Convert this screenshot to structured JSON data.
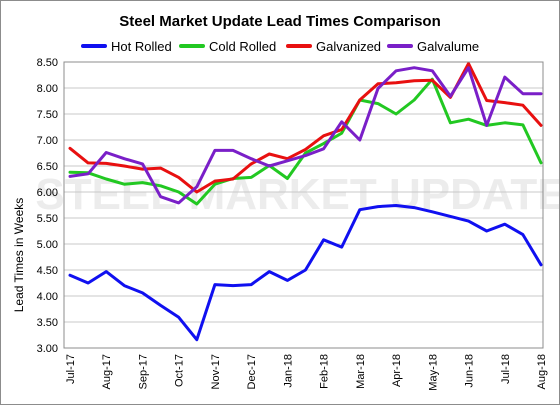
{
  "chart_data": {
    "type": "line",
    "title": "Steel Market Update Lead Times Comparison",
    "ylabel": "Lead Times in Weeks",
    "xlabel": "",
    "ylim": [
      3.0,
      8.5
    ],
    "yticks": [
      "3.00",
      "3.50",
      "4.00",
      "4.50",
      "5.00",
      "5.50",
      "6.00",
      "6.50",
      "7.00",
      "7.50",
      "8.00",
      "8.50"
    ],
    "tick_labels": [
      "Jul-17",
      "Aug-17",
      "Sep-17",
      "Oct-17",
      "Nov-17",
      "Dec-17",
      "Jan-18",
      "Feb-18",
      "Mar-18",
      "Apr-18",
      "May-18",
      "Jun-18",
      "Jul-18",
      "Aug-18"
    ],
    "grid": true,
    "legend": "top",
    "watermark": "STEEL MARKET UPDATE",
    "series": [
      {
        "name": "Hot Rolled",
        "color": "#1010f0",
        "values": [
          4.4,
          4.25,
          4.47,
          4.2,
          4.06,
          3.82,
          3.59,
          3.16,
          4.22,
          4.2,
          4.22,
          4.47,
          4.3,
          4.5,
          5.08,
          4.94,
          5.66,
          5.72,
          5.74,
          5.7,
          5.62,
          5.53,
          5.44,
          5.25,
          5.38,
          5.18,
          4.6
        ]
      },
      {
        "name": "Cold Rolled",
        "color": "#22c822",
        "values": [
          6.38,
          6.37,
          6.25,
          6.15,
          6.18,
          6.12,
          6.0,
          5.77,
          6.15,
          6.26,
          6.28,
          6.51,
          6.26,
          6.75,
          6.93,
          7.13,
          7.77,
          7.7,
          7.5,
          7.77,
          8.17,
          7.33,
          7.4,
          7.28,
          7.33,
          7.29,
          6.56
        ]
      },
      {
        "name": "Galvanized",
        "color": "#e81010",
        "values": [
          6.84,
          6.56,
          6.55,
          6.5,
          6.44,
          6.46,
          6.28,
          6.0,
          6.21,
          6.25,
          6.54,
          6.73,
          6.64,
          6.82,
          7.08,
          7.2,
          7.77,
          8.08,
          8.1,
          8.14,
          8.15,
          7.82,
          8.47,
          7.76,
          7.72,
          7.67,
          7.28
        ]
      },
      {
        "name": "Galvalume",
        "color": "#7a1fc8",
        "values": [
          6.3,
          6.35,
          6.76,
          6.64,
          6.54,
          5.91,
          5.79,
          6.1,
          6.8,
          6.8,
          6.64,
          6.5,
          6.6,
          6.7,
          6.83,
          7.35,
          7.0,
          7.99,
          8.33,
          8.39,
          8.33,
          7.84,
          8.39,
          7.28,
          8.21,
          7.89,
          7.89
        ]
      }
    ]
  }
}
